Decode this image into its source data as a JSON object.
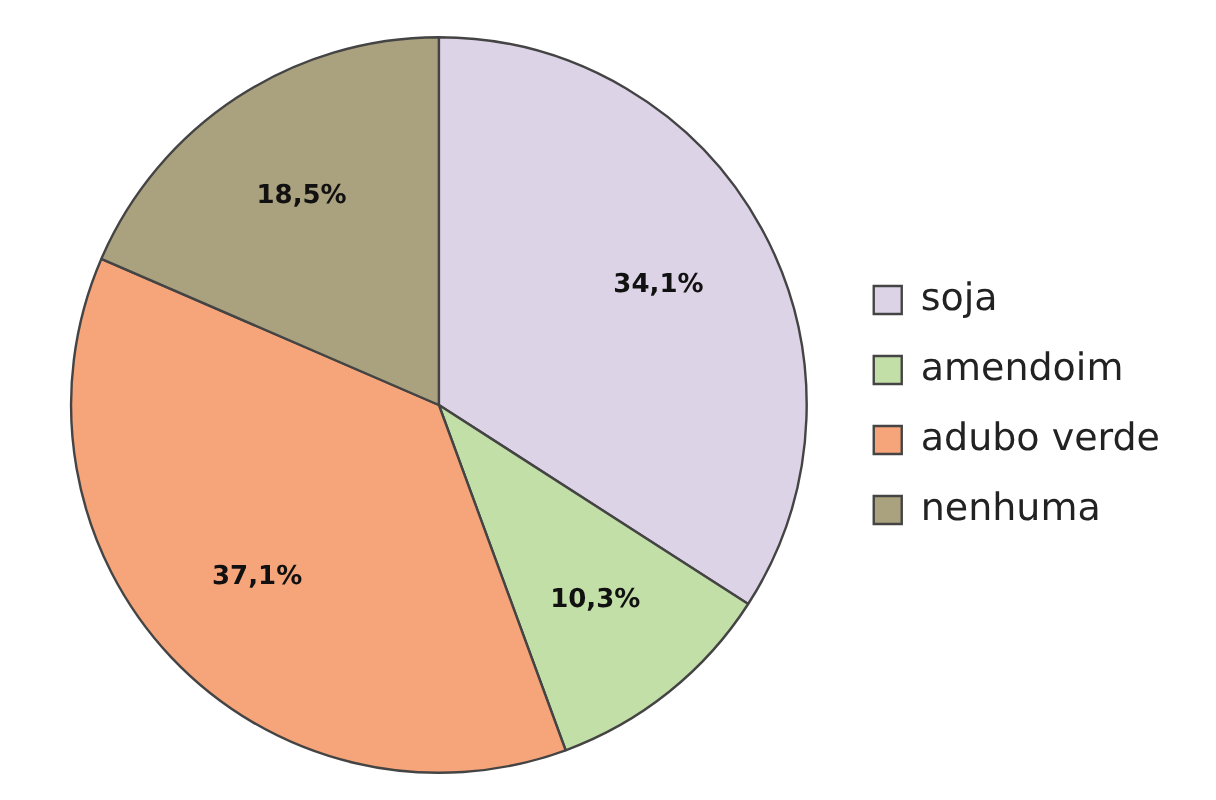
{
  "chart_data": {
    "type": "pie",
    "categories": [
      "soja",
      "amendoim",
      "adubo verde",
      "nenhuma"
    ],
    "values": [
      34.1,
      10.3,
      37.1,
      18.5
    ],
    "colors": [
      "#dcd3e6",
      "#c3dfa8",
      "#f6a57a",
      "#aaa27e"
    ],
    "value_labels": [
      "34,1%",
      "10,3%",
      "37,1%",
      "18,5%"
    ],
    "legend": "right"
  }
}
